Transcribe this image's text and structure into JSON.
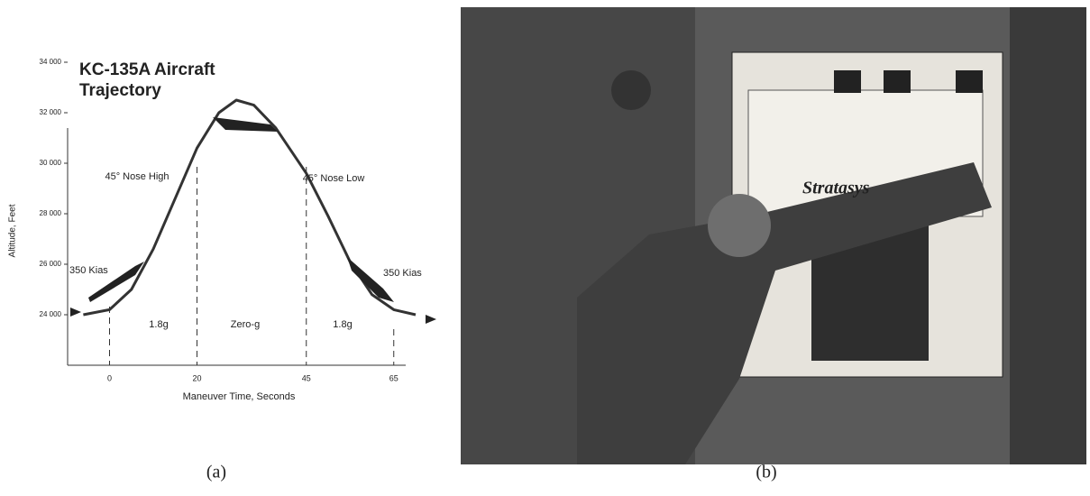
{
  "chart_data": {
    "type": "line",
    "title": [
      "KC-135A Aircraft",
      "Trajectory"
    ],
    "x_label": "Maneuver Time, Seconds",
    "y_label": "Altitude, Feet",
    "x": [
      -6,
      0,
      5,
      10,
      15,
      20,
      25,
      29,
      33,
      38,
      45,
      50,
      55,
      60,
      65,
      70
    ],
    "values": [
      24000,
      24200,
      25000,
      26600,
      28600,
      30600,
      32000,
      32500,
      32300,
      31400,
      29600,
      27900,
      26100,
      24800,
      24200,
      24000
    ],
    "color": "#333333",
    "xlim": [
      -10,
      70
    ],
    "xticks": [
      0,
      20,
      45,
      65
    ],
    "ylim": [
      22000,
      34000
    ],
    "yticks": [
      {
        "value": 24000,
        "label": "24 000"
      },
      {
        "value": 26000,
        "label": "26 000"
      },
      {
        "value": 28000,
        "label": "28 000"
      },
      {
        "value": 30000,
        "label": "30 000"
      },
      {
        "value": 32000,
        "label": "32 000"
      },
      {
        "value": 34000,
        "label": "34 000"
      }
    ],
    "annotations": [
      "45° Nose High",
      "45° Nose Low",
      "350 Kias",
      "350 Kias",
      "1.8g",
      "Zero-g",
      "1.8g"
    ]
  },
  "captions": [
    "(a)",
    "(b)"
  ],
  "photo_text": "Stratasys"
}
